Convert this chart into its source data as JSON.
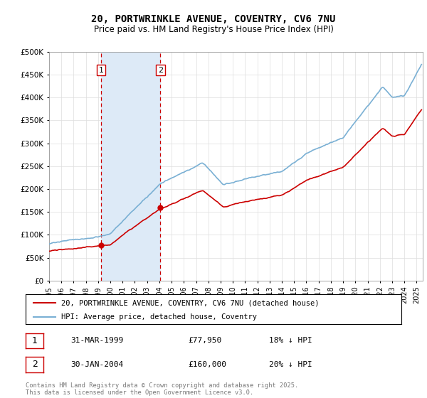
{
  "title": "20, PORTWRINKLE AVENUE, COVENTRY, CV6 7NU",
  "subtitle": "Price paid vs. HM Land Registry's House Price Index (HPI)",
  "legend_property": "20, PORTWRINKLE AVENUE, COVENTRY, CV6 7NU (detached house)",
  "legend_hpi": "HPI: Average price, detached house, Coventry",
  "sale1_date": "31-MAR-1999",
  "sale1_price": 77950,
  "sale1_label": "1",
  "sale1_hpi_pct": "18% ↓ HPI",
  "sale2_date": "30-JAN-2004",
  "sale2_price": 160000,
  "sale2_label": "2",
  "sale2_hpi_pct": "20% ↓ HPI",
  "footer": "Contains HM Land Registry data © Crown copyright and database right 2025.\nThis data is licensed under the Open Government Licence v3.0.",
  "ylim": [
    0,
    500000
  ],
  "yticks": [
    0,
    50000,
    100000,
    150000,
    200000,
    250000,
    300000,
    350000,
    400000,
    450000,
    500000
  ],
  "property_color": "#cc0000",
  "hpi_color": "#7ab0d4",
  "shading_color": "#ddeaf7",
  "sale1_x_year": 1999.25,
  "sale2_x_year": 2004.08,
  "xlim_start": 1995.0,
  "xlim_end": 2025.5
}
